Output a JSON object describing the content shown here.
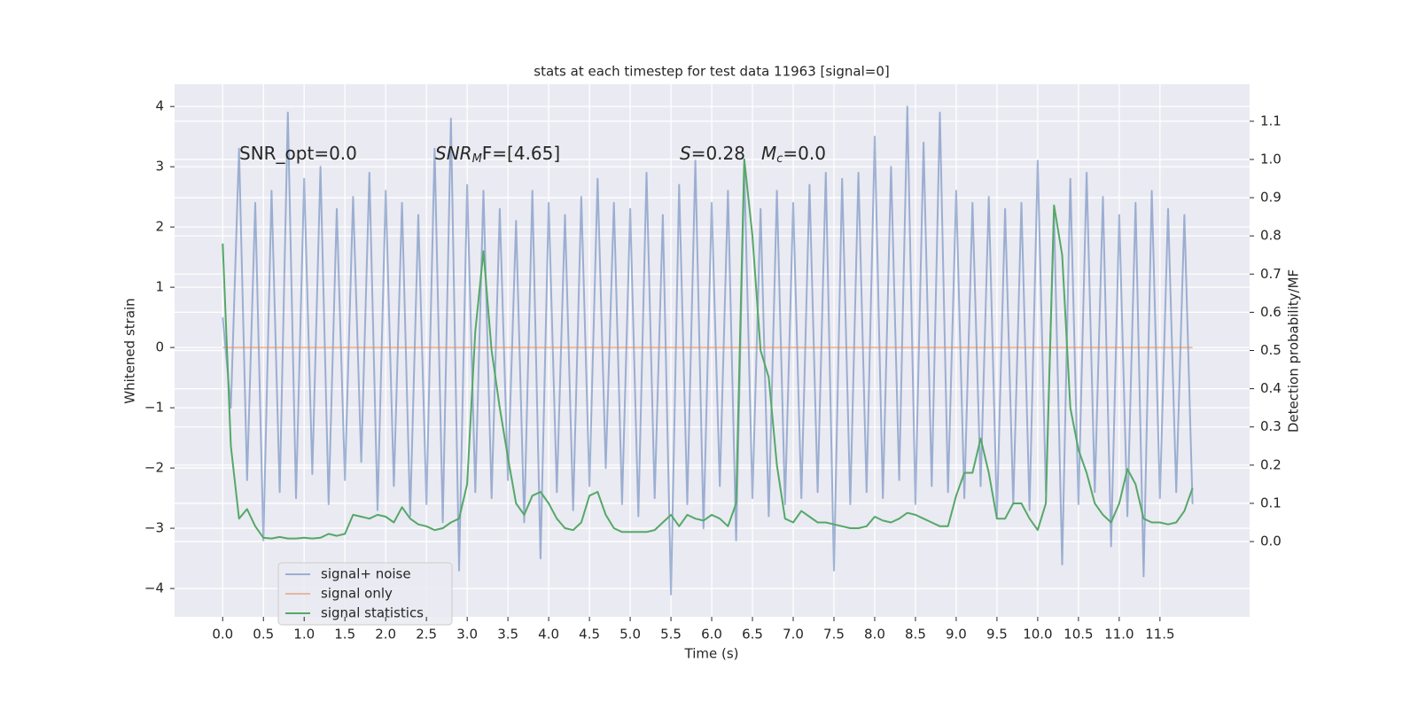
{
  "chart_data": {
    "type": "line",
    "title": "stats at each timestep for test data 11963 [signal=0]",
    "xlabel": "Time (s)",
    "ylabel": "Whitened strain",
    "y2label": "Detection probability/MF",
    "annotations": [
      {
        "parts": [
          "SNR_opt=0.0"
        ]
      },
      {
        "parts": [
          "SNR",
          "M",
          "F=[4.65]"
        ]
      },
      {
        "parts": [
          "S",
          "=0.28"
        ]
      },
      {
        "parts": [
          "M",
          "c",
          "=0.0"
        ]
      }
    ],
    "x": [
      0,
      0.1,
      0.2,
      0.3,
      0.4,
      0.5,
      0.6,
      0.7,
      0.8,
      0.9,
      1,
      1.1,
      1.2,
      1.3,
      1.4,
      1.5,
      1.6,
      1.7,
      1.8,
      1.9,
      2,
      2.1,
      2.2,
      2.3,
      2.4,
      2.5,
      2.6,
      2.7,
      2.8,
      2.9,
      3,
      3.1,
      3.2,
      3.3,
      3.4,
      3.5,
      3.6,
      3.7,
      3.8,
      3.9,
      4,
      4.1,
      4.2,
      4.3,
      4.4,
      4.5,
      4.6,
      4.7,
      4.8,
      4.9,
      5,
      5.1,
      5.2,
      5.3,
      5.4,
      5.5,
      5.6,
      5.7,
      5.8,
      5.9,
      6,
      6.1,
      6.2,
      6.3,
      6.4,
      6.5,
      6.6,
      6.7,
      6.8,
      6.9,
      7,
      7.1,
      7.2,
      7.3,
      7.4,
      7.5,
      7.6,
      7.7,
      7.8,
      7.9,
      8,
      8.1,
      8.2,
      8.3,
      8.4,
      8.5,
      8.6,
      8.7,
      8.8,
      8.9,
      9,
      9.1,
      9.2,
      9.3,
      9.4,
      9.5,
      9.6,
      9.7,
      9.8,
      9.9,
      10,
      10.1,
      10.2,
      10.3,
      10.4,
      10.5,
      10.6,
      10.7,
      10.8,
      10.9,
      11,
      11.1,
      11.2,
      11.3,
      11.4,
      11.5,
      11.6,
      11.7,
      11.8,
      11.9
    ],
    "series": [
      {
        "name": "signal+ noise",
        "color": "#4c72b0",
        "opacity": 0.5,
        "axis": "y",
        "values": [
          0.5,
          -1.0,
          3.3,
          -2.2,
          2.4,
          -3.2,
          2.6,
          -2.4,
          3.9,
          -2.5,
          2.8,
          -2.1,
          3.0,
          -2.6,
          2.3,
          -2.2,
          2.5,
          -1.9,
          2.9,
          -2.7,
          2.6,
          -2.3,
          2.4,
          -2.8,
          2.2,
          -2.6,
          3.3,
          -2.9,
          3.8,
          -3.7,
          2.7,
          -2.4,
          2.6,
          -2.5,
          2.3,
          -2.2,
          2.1,
          -2.9,
          2.6,
          -3.5,
          2.4,
          -2.4,
          2.2,
          -2.7,
          2.5,
          -2.3,
          2.8,
          -2.0,
          2.4,
          -2.6,
          2.3,
          -2.8,
          2.9,
          -2.5,
          2.2,
          -4.1,
          2.7,
          -2.6,
          3.1,
          -3.0,
          2.4,
          -2.3,
          2.6,
          -3.2,
          3.0,
          -2.5,
          2.3,
          -2.8,
          2.6,
          -2.6,
          2.4,
          -2.5,
          2.7,
          -2.4,
          2.9,
          -3.7,
          2.8,
          -2.6,
          2.9,
          -2.4,
          3.5,
          -2.5,
          3.0,
          -2.2,
          4.0,
          -2.6,
          3.4,
          -2.3,
          3.9,
          -2.4,
          2.6,
          -2.5,
          2.4,
          -2.3,
          2.5,
          -2.8,
          2.3,
          -2.6,
          2.4,
          -2.7,
          3.1,
          -2.4,
          2.2,
          -3.6,
          2.8,
          -2.6,
          2.9,
          -2.4,
          2.5,
          -3.3,
          2.2,
          -2.8,
          2.4,
          -3.8,
          2.6,
          -2.5,
          2.3,
          -2.4,
          2.2,
          -2.6
        ]
      },
      {
        "name": "signal only",
        "color": "#dd8452",
        "opacity": 0.5,
        "axis": "y",
        "values": [
          0,
          0,
          0,
          0,
          0,
          0,
          0,
          0,
          0,
          0,
          0,
          0,
          0,
          0,
          0,
          0,
          0,
          0,
          0,
          0,
          0,
          0,
          0,
          0,
          0,
          0,
          0,
          0,
          0,
          0,
          0,
          0,
          0,
          0,
          0,
          0,
          0,
          0,
          0,
          0,
          0,
          0,
          0,
          0,
          0,
          0,
          0,
          0,
          0,
          0,
          0,
          0,
          0,
          0,
          0,
          0,
          0,
          0,
          0,
          0,
          0,
          0,
          0,
          0,
          0,
          0,
          0,
          0,
          0,
          0,
          0,
          0,
          0,
          0,
          0,
          0,
          0,
          0,
          0,
          0,
          0,
          0,
          0,
          0,
          0,
          0,
          0,
          0,
          0,
          0,
          0,
          0,
          0,
          0,
          0,
          0,
          0,
          0,
          0,
          0,
          0,
          0,
          0,
          0,
          0,
          0,
          0,
          0,
          0,
          0,
          0,
          0,
          0,
          0,
          0,
          0,
          0,
          0,
          0,
          0
        ]
      },
      {
        "name": "signal statistics",
        "color": "#55a868",
        "opacity": 1,
        "axis": "y2",
        "values": [
          0.78,
          0.25,
          0.06,
          0.085,
          0.04,
          0.01,
          0.008,
          0.012,
          0.008,
          0.008,
          0.01,
          0.008,
          0.01,
          0.02,
          0.015,
          0.02,
          0.07,
          0.065,
          0.06,
          0.07,
          0.065,
          0.05,
          0.09,
          0.06,
          0.045,
          0.04,
          0.03,
          0.035,
          0.05,
          0.06,
          0.15,
          0.55,
          0.76,
          0.5,
          0.35,
          0.22,
          0.1,
          0.07,
          0.12,
          0.13,
          0.1,
          0.06,
          0.035,
          0.03,
          0.05,
          0.12,
          0.13,
          0.07,
          0.035,
          0.025,
          0.025,
          0.025,
          0.025,
          0.03,
          0.05,
          0.07,
          0.04,
          0.07,
          0.06,
          0.055,
          0.07,
          0.06,
          0.04,
          0.1,
          1.0,
          0.8,
          0.5,
          0.43,
          0.2,
          0.06,
          0.05,
          0.08,
          0.065,
          0.05,
          0.05,
          0.045,
          0.04,
          0.035,
          0.035,
          0.04,
          0.065,
          0.055,
          0.05,
          0.06,
          0.075,
          0.07,
          0.06,
          0.05,
          0.04,
          0.04,
          0.12,
          0.18,
          0.18,
          0.27,
          0.18,
          0.06,
          0.06,
          0.1,
          0.1,
          0.06,
          0.03,
          0.1,
          0.88,
          0.75,
          0.35,
          0.24,
          0.18,
          0.1,
          0.07,
          0.05,
          0.1,
          0.19,
          0.15,
          0.06,
          0.05,
          0.05,
          0.045,
          0.05,
          0.08,
          0.14
        ]
      }
    ],
    "xlim": [
      -0.59,
      12.6
    ],
    "xticks": [
      {
        "value": 0,
        "label": "0.0"
      },
      0.5,
      {
        "value": 1,
        "label": "1.0"
      },
      1.5,
      {
        "value": 2,
        "label": "2.0"
      },
      2.5,
      {
        "value": 3,
        "label": "3.0"
      },
      3.5,
      {
        "value": 4,
        "label": "4.0"
      },
      4.5,
      {
        "value": 5,
        "label": "5.0"
      },
      5.5,
      {
        "value": 6,
        "label": "6.0"
      },
      6.5,
      {
        "value": 7,
        "label": "7.0"
      },
      7.5,
      {
        "value": 8,
        "label": "8.0"
      },
      8.5,
      {
        "value": 9,
        "label": "9.0"
      },
      9.5,
      {
        "value": 10,
        "label": "10.0"
      },
      10.5,
      {
        "value": 11,
        "label": "11.0"
      },
      11.5
    ],
    "ylim": [
      -4.47,
      4.37
    ],
    "yticks": [
      {
        "value": -4,
        "label": "−4"
      },
      {
        "value": -3,
        "label": "−3"
      },
      {
        "value": -2,
        "label": "−2"
      },
      {
        "value": -1,
        "label": "−1"
      },
      0,
      1,
      2,
      3,
      4
    ],
    "y2lim": [
      -0.197,
      1.197
    ],
    "y2ticks": [
      {
        "value": 0,
        "label": "0.0"
      },
      0.1,
      0.2,
      0.3,
      0.4,
      0.5,
      0.6,
      0.7,
      0.8,
      0.9,
      {
        "value": 1,
        "label": "1.0"
      },
      1.1
    ],
    "grid": true,
    "legend": "lower left"
  }
}
